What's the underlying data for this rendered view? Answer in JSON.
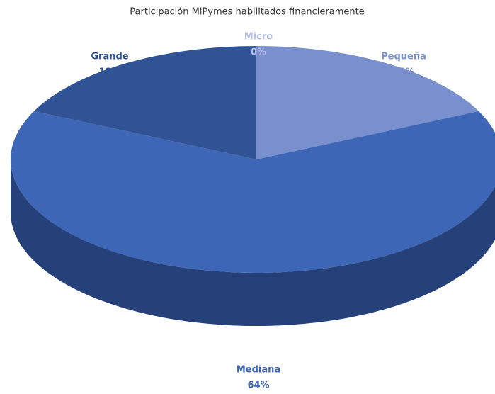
{
  "chart_data": {
    "type": "pie",
    "title": "Participación MiPymes habilitados financieramente",
    "categories": [
      "Micro",
      "Pequeña",
      "Mediana",
      "Grande"
    ],
    "values": [
      0,
      18,
      64,
      18
    ],
    "value_labels": [
      "0%",
      "18%",
      "64%",
      "18%"
    ],
    "colors": [
      "#b4c1e6",
      "#7a8fcd",
      "#3d66b6",
      "#2f5394"
    ]
  }
}
